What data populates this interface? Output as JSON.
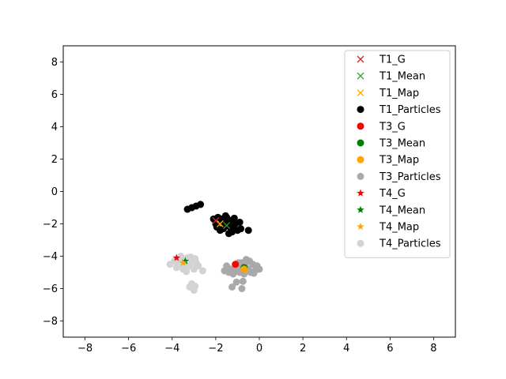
{
  "chart_data": {
    "type": "scatter",
    "title": "",
    "xlabel": "",
    "ylabel": "",
    "xlim": [
      -9,
      9
    ],
    "ylim": [
      -9,
      9
    ],
    "xticks": [
      -8,
      -6,
      -4,
      -2,
      0,
      2,
      4,
      6,
      8
    ],
    "yticks": [
      -8,
      -6,
      -4,
      -2,
      0,
      2,
      4,
      6,
      8
    ],
    "grid": false,
    "legend_position": "upper right",
    "series": [
      {
        "name": "T1_G",
        "marker": "x",
        "color": "#d62728",
        "points": [
          [
            -2.0,
            -1.8
          ]
        ]
      },
      {
        "name": "T1_Mean",
        "marker": "x",
        "color": "#2ca02c",
        "points": [
          [
            -1.5,
            -2.1
          ]
        ]
      },
      {
        "name": "T1_Map",
        "marker": "x",
        "color": "#ffa500",
        "points": [
          [
            -1.8,
            -2.0
          ]
        ]
      },
      {
        "name": "T1_Particles",
        "marker": "circle",
        "color": "#000000",
        "points": [
          [
            -2.1,
            -1.7
          ],
          [
            -2.0,
            -2.0
          ],
          [
            -1.9,
            -1.6
          ],
          [
            -1.8,
            -2.4
          ],
          [
            -1.7,
            -1.9
          ],
          [
            -1.6,
            -2.1
          ],
          [
            -1.5,
            -1.6
          ],
          [
            -1.4,
            -2.6
          ],
          [
            -1.3,
            -1.8
          ],
          [
            -1.2,
            -2.3
          ],
          [
            -1.1,
            -2.0
          ],
          [
            -1.0,
            -2.4
          ],
          [
            -0.9,
            -1.9
          ],
          [
            -1.55,
            -1.5
          ],
          [
            -1.35,
            -2.2
          ],
          [
            -1.65,
            -2.3
          ],
          [
            -1.25,
            -2.5
          ],
          [
            -0.85,
            -2.3
          ],
          [
            -0.5,
            -2.4
          ],
          [
            -1.45,
            -1.85
          ],
          [
            -1.75,
            -1.7
          ],
          [
            -1.15,
            -1.65
          ],
          [
            -1.95,
            -2.2
          ],
          [
            -3.3,
            -1.1
          ],
          [
            -3.1,
            -1.0
          ],
          [
            -2.9,
            -0.9
          ],
          [
            -2.7,
            -0.8
          ]
        ]
      },
      {
        "name": "T3_G",
        "marker": "circle",
        "color": "#ff0000",
        "points": [
          [
            -1.1,
            -4.5
          ]
        ]
      },
      {
        "name": "T3_Mean",
        "marker": "circle",
        "color": "#008000",
        "points": [
          [
            -0.7,
            -4.7
          ]
        ]
      },
      {
        "name": "T3_Map",
        "marker": "circle",
        "color": "#ffa500",
        "points": [
          [
            -0.7,
            -4.8
          ]
        ]
      },
      {
        "name": "T3_Particles",
        "marker": "circle",
        "color": "#a9a9a9",
        "points": [
          [
            -1.6,
            -4.9
          ],
          [
            -1.5,
            -4.6
          ],
          [
            -1.4,
            -5.0
          ],
          [
            -1.3,
            -4.8
          ],
          [
            -1.2,
            -5.1
          ],
          [
            -1.0,
            -4.7
          ],
          [
            -0.9,
            -5.0
          ],
          [
            -0.8,
            -4.4
          ],
          [
            -0.7,
            -5.1
          ],
          [
            -0.6,
            -4.2
          ],
          [
            -0.5,
            -4.8
          ],
          [
            -0.4,
            -5.0
          ],
          [
            -0.3,
            -4.5
          ],
          [
            -0.2,
            -4.9
          ],
          [
            -0.1,
            -4.6
          ],
          [
            0.0,
            -4.8
          ],
          [
            -0.45,
            -4.3
          ],
          [
            -0.25,
            -5.05
          ],
          [
            -1.1,
            -4.95
          ],
          [
            -0.95,
            -4.4
          ],
          [
            -0.65,
            -4.55
          ],
          [
            -1.25,
            -5.9
          ],
          [
            -0.8,
            -6.0
          ],
          [
            -1.05,
            -5.6
          ],
          [
            -0.75,
            -5.55
          ]
        ]
      },
      {
        "name": "T4_G",
        "marker": "star",
        "color": "#ff0000",
        "points": [
          [
            -3.8,
            -4.1
          ]
        ]
      },
      {
        "name": "T4_Mean",
        "marker": "star",
        "color": "#008000",
        "points": [
          [
            -3.4,
            -4.3
          ]
        ]
      },
      {
        "name": "T4_Map",
        "marker": "star",
        "color": "#ffa500",
        "points": [
          [
            -3.5,
            -4.4
          ]
        ]
      },
      {
        "name": "T4_Particles",
        "marker": "circle",
        "color": "#d3d3d3",
        "points": [
          [
            -4.1,
            -4.5
          ],
          [
            -3.9,
            -4.3
          ],
          [
            -3.8,
            -4.7
          ],
          [
            -3.7,
            -4.4
          ],
          [
            -3.6,
            -4.0
          ],
          [
            -3.5,
            -4.8
          ],
          [
            -3.4,
            -4.5
          ],
          [
            -3.3,
            -4.1
          ],
          [
            -3.2,
            -4.6
          ],
          [
            -3.1,
            -4.3
          ],
          [
            -3.0,
            -4.8
          ],
          [
            -2.9,
            -4.4
          ],
          [
            -2.8,
            -4.6
          ],
          [
            -2.6,
            -4.9
          ],
          [
            -3.55,
            -4.25
          ],
          [
            -3.35,
            -4.95
          ],
          [
            -3.15,
            -4.05
          ],
          [
            -2.95,
            -4.15
          ],
          [
            -3.65,
            -4.55
          ],
          [
            -3.1,
            -5.7
          ],
          [
            -3.0,
            -6.1
          ],
          [
            -3.2,
            -5.9
          ],
          [
            -2.95,
            -5.85
          ]
        ]
      }
    ]
  }
}
